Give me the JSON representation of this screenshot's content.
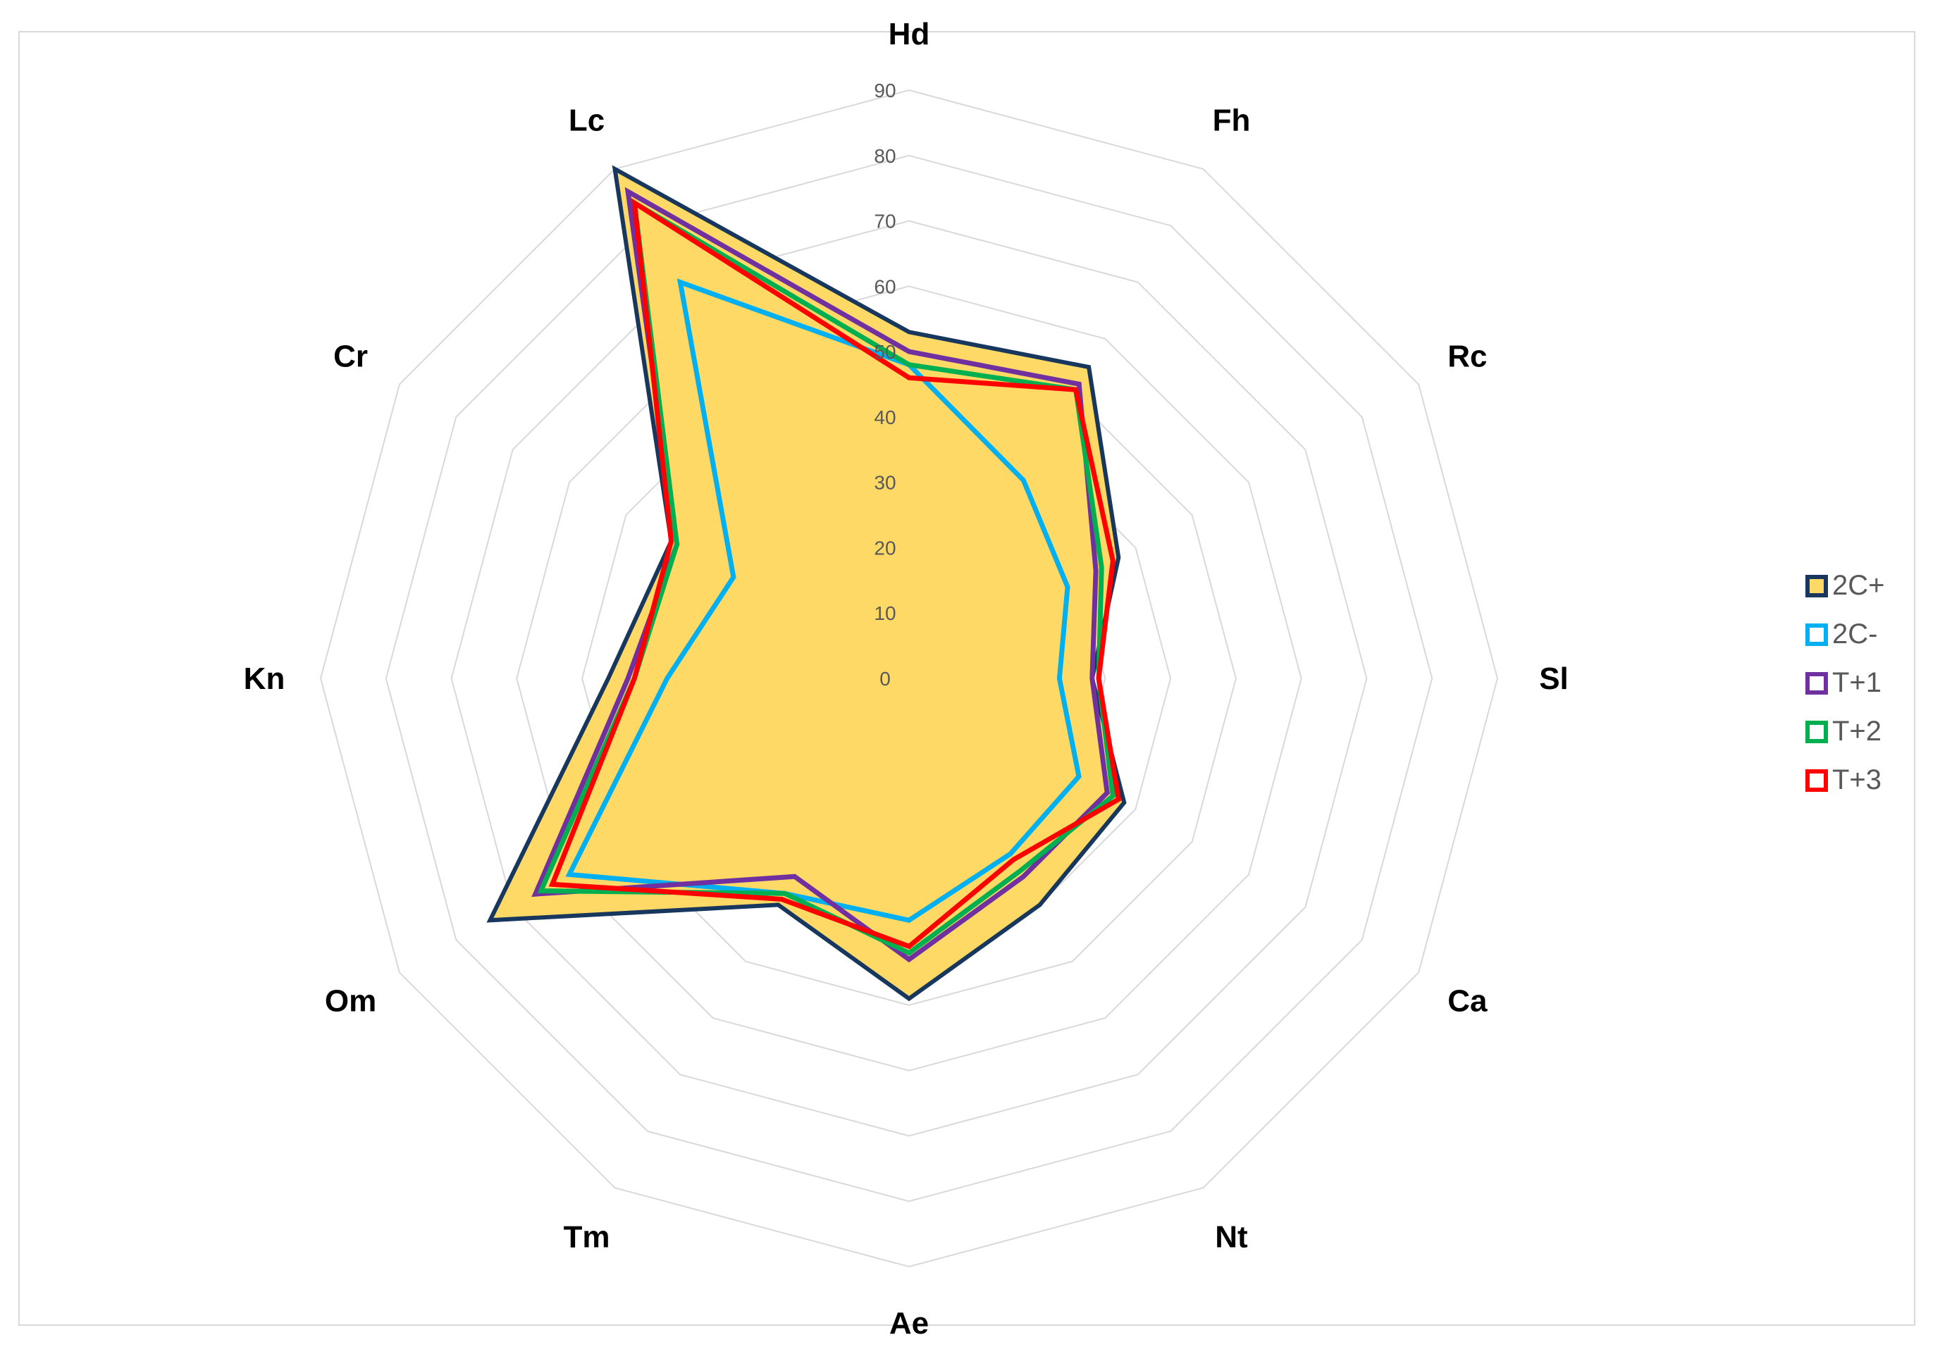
{
  "chart_data": {
    "type": "radar",
    "axes": [
      "Hd",
      "Fh",
      "Rc",
      "Sl",
      "Ca",
      "Nt",
      "Ae",
      "Tm",
      "Om",
      "Kn",
      "Cr",
      "Lc"
    ],
    "rmin": 0,
    "rmax": 90,
    "ticks": [
      "0",
      "10",
      "20",
      "30",
      "40",
      "50",
      "60",
      "70",
      "80",
      "90"
    ],
    "tick_values": [
      0,
      10,
      20,
      30,
      40,
      50,
      60,
      70,
      80,
      90
    ],
    "grid": true,
    "legend_position": "right",
    "series": [
      {
        "name": "2C+",
        "values": [
          53,
          55,
          37,
          28,
          38,
          40,
          49,
          40,
          74,
          46,
          42,
          90
        ],
        "color": "#17375e",
        "fill": "#ffd966"
      },
      {
        "name": "2C-",
        "values": [
          48,
          35,
          28,
          23,
          30,
          31,
          37,
          38,
          60,
          37,
          31,
          70
        ],
        "color": "#00b0f0"
      },
      {
        "name": "T+1",
        "values": [
          50,
          52,
          33,
          28,
          35,
          35,
          43,
          35,
          66,
          43,
          41,
          86
        ],
        "color": "#7030a0"
      },
      {
        "name": "T+2",
        "values": [
          48,
          51,
          34,
          29,
          36,
          34,
          42,
          38,
          65,
          42,
          41,
          84
        ],
        "color": "#00b050"
      },
      {
        "name": "T+3",
        "values": [
          46,
          51,
          36,
          29,
          37,
          32,
          41,
          39,
          63,
          42,
          42,
          84
        ],
        "color": "#ff0000"
      }
    ]
  }
}
